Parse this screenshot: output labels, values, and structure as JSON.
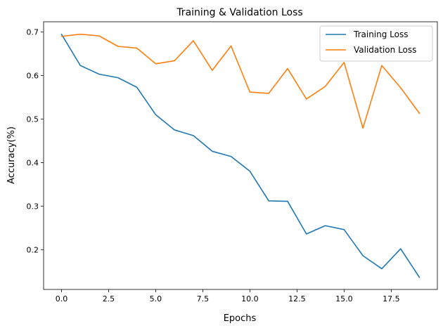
{
  "chart_data": {
    "type": "line",
    "title": "Training & Validation Loss",
    "xlabel": "Epochs",
    "ylabel": "Accuracy(%)",
    "xlim": [
      -0.95,
      19.95
    ],
    "ylim": [
      0.1085,
      0.7235
    ],
    "xticks": [
      0.0,
      2.5,
      5.0,
      7.5,
      10.0,
      12.5,
      15.0,
      17.5
    ],
    "xtick_labels": [
      "0.0",
      "2.5",
      "5.0",
      "7.5",
      "10.0",
      "12.5",
      "15.0",
      "17.5"
    ],
    "yticks": [
      0.2,
      0.3,
      0.4,
      0.5,
      0.6,
      0.7
    ],
    "ytick_labels": [
      "0.2",
      "0.3",
      "0.4",
      "0.5",
      "0.6",
      "0.7"
    ],
    "grid": false,
    "legend_position": "top-right",
    "x": [
      0,
      1,
      2,
      3,
      4,
      5,
      6,
      7,
      8,
      9,
      10,
      11,
      12,
      13,
      14,
      15,
      16,
      17,
      18,
      19
    ],
    "series": [
      {
        "name": "Training Loss",
        "color": "#1f77b4",
        "values": [
          0.695,
          0.623,
          0.603,
          0.595,
          0.573,
          0.51,
          0.475,
          0.462,
          0.426,
          0.414,
          0.38,
          0.312,
          0.311,
          0.236,
          0.255,
          0.246,
          0.186,
          0.156,
          0.202,
          0.136
        ]
      },
      {
        "name": "Validation Loss",
        "color": "#ff7f0e",
        "values": [
          0.69,
          0.695,
          0.691,
          0.667,
          0.663,
          0.627,
          0.634,
          0.68,
          0.612,
          0.668,
          0.562,
          0.559,
          0.616,
          0.546,
          0.575,
          0.63,
          0.479,
          0.623,
          0.572,
          0.513
        ]
      }
    ]
  }
}
